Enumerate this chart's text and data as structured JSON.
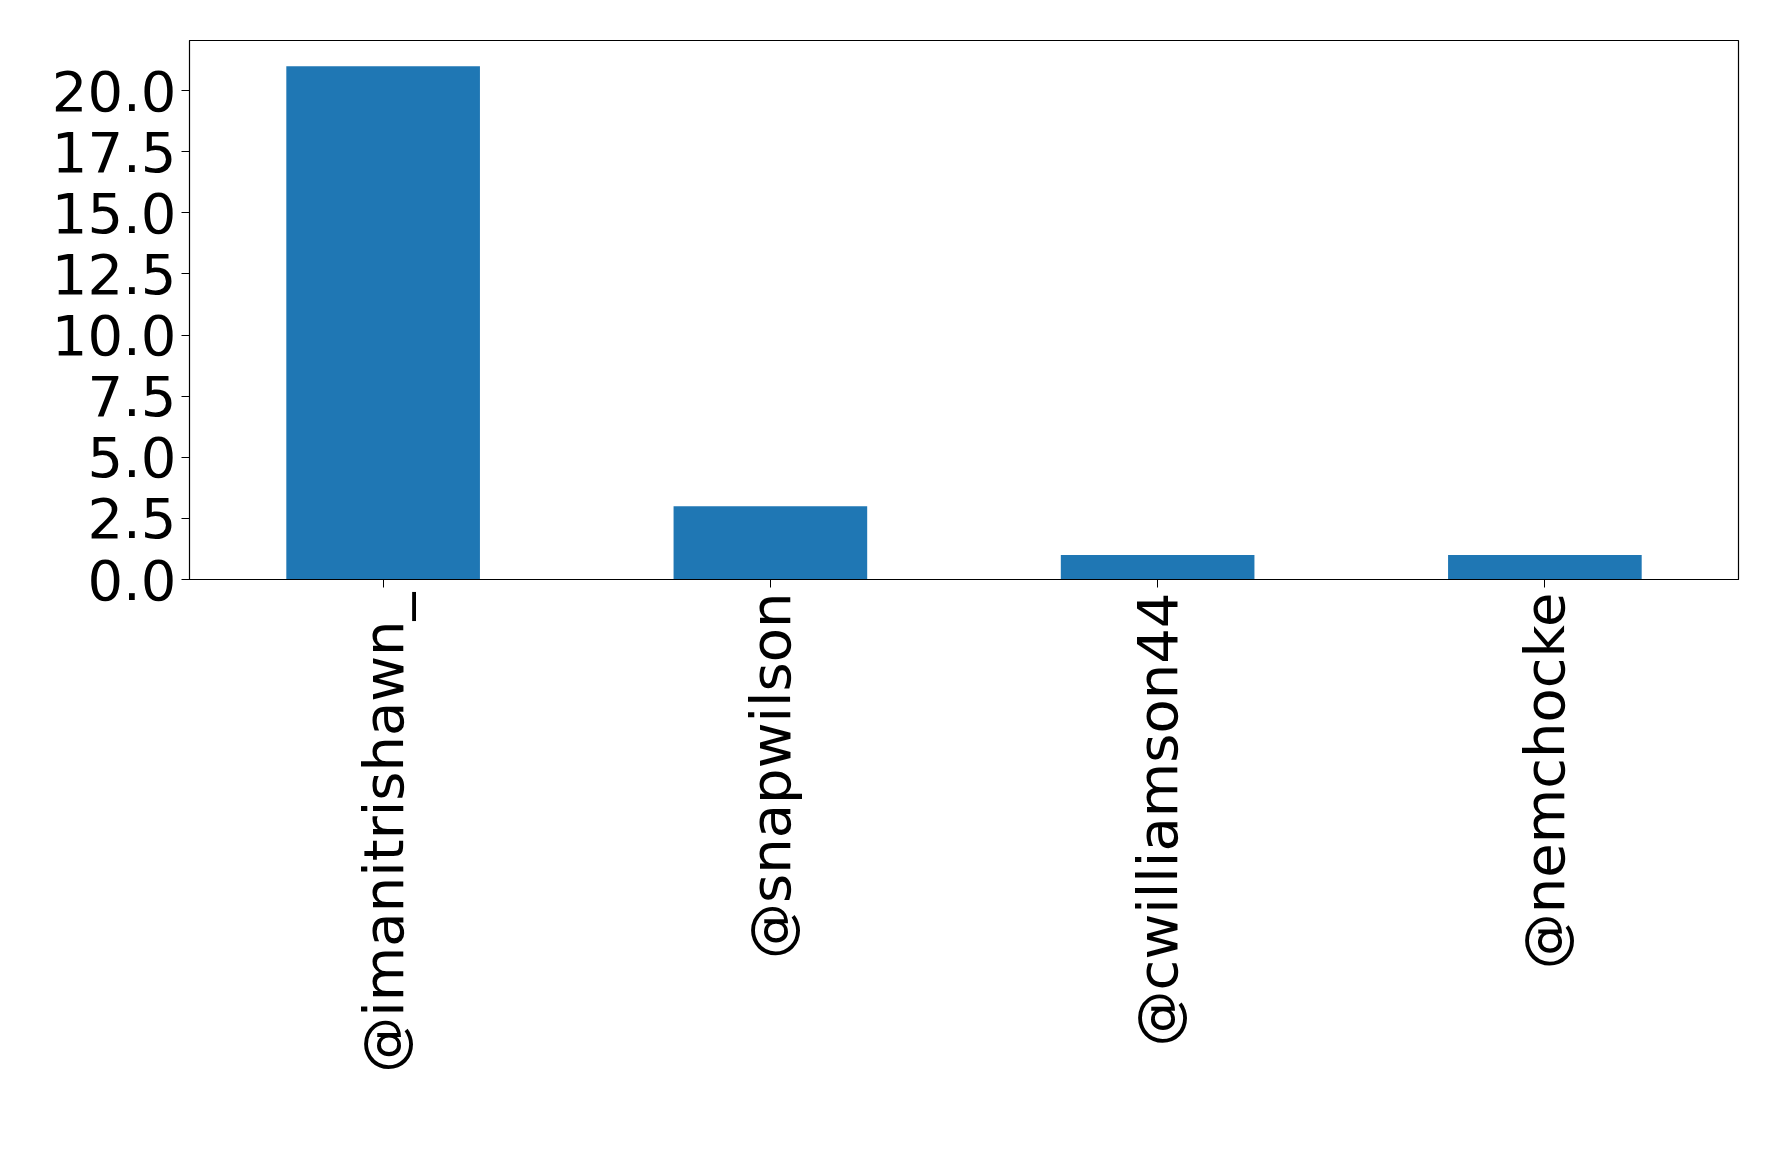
{
  "chart_data": {
    "type": "bar",
    "categories": [
      "@imanitrishawn_",
      "@snapwilson",
      "@cwilliamson44",
      "@nemchocke"
    ],
    "values": [
      21,
      3,
      1,
      1
    ],
    "color": "#1f77b4",
    "ylim": [
      0,
      22.05
    ],
    "yticks": [
      {
        "value": 0,
        "label": "0.0"
      },
      {
        "value": 2.5,
        "label": "2.5"
      },
      {
        "value": 5,
        "label": "5.0"
      },
      {
        "value": 7.5,
        "label": "7.5"
      },
      {
        "value": 10,
        "label": "10.0"
      },
      {
        "value": 12.5,
        "label": "12.5"
      },
      {
        "value": 15,
        "label": "15.0"
      },
      {
        "value": 17.5,
        "label": "17.5"
      },
      {
        "value": 20,
        "label": "20.0"
      }
    ],
    "grid": false
  }
}
